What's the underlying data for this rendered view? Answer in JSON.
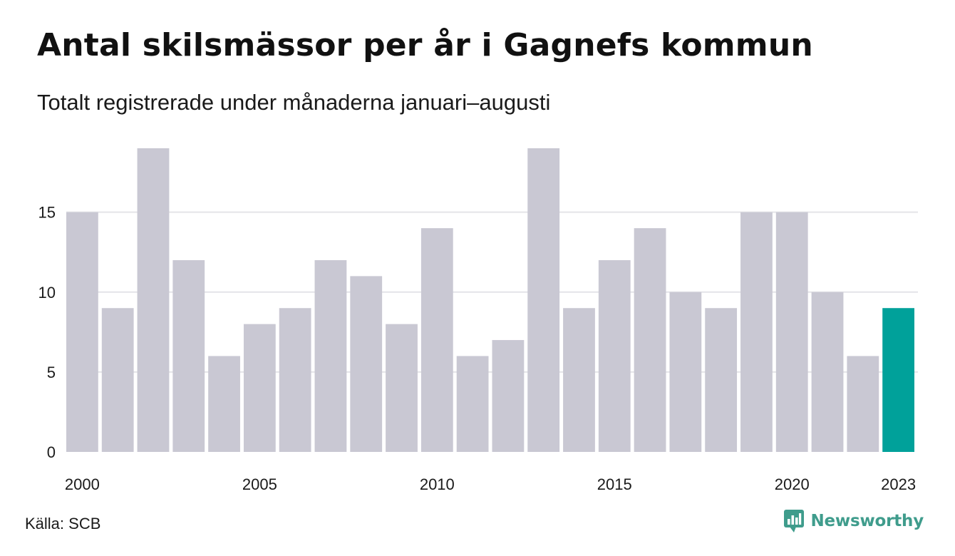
{
  "title": "Antal skilsmässor per år i Gagnefs kommun",
  "subtitle": "Totalt registrerade under månaderna januari–augusti",
  "source": "Källa: SCB",
  "brand": {
    "name": "Newsworthy",
    "icon": "newsworthy-logo-icon",
    "color": "#3f9c8c"
  },
  "colors": {
    "bar": "#c9c8d3",
    "highlight": "#00a19a",
    "grid": "#e4e4e8",
    "axis": "#1a1a1a"
  },
  "chart_data": {
    "type": "bar",
    "categories": [
      "2000",
      "2001",
      "2002",
      "2003",
      "2004",
      "2005",
      "2006",
      "2007",
      "2008",
      "2009",
      "2010",
      "2011",
      "2012",
      "2013",
      "2014",
      "2015",
      "2016",
      "2017",
      "2018",
      "2019",
      "2020",
      "2021",
      "2022",
      "2023"
    ],
    "values": [
      15,
      9,
      19,
      12,
      6,
      8,
      9,
      12,
      11,
      8,
      14,
      6,
      7,
      19,
      9,
      12,
      14,
      10,
      9,
      15,
      15,
      10,
      6,
      9
    ],
    "highlight_category": "2023",
    "x_tick_labels": [
      "2000",
      "2005",
      "2010",
      "2015",
      "2020",
      "2023"
    ],
    "y_ticks": [
      0,
      5,
      10,
      15
    ],
    "ylim": [
      0,
      19
    ],
    "grid": true,
    "legend": "none",
    "title": "Antal skilsmässor per år i Gagnefs kommun",
    "xlabel": "",
    "ylabel": ""
  }
}
